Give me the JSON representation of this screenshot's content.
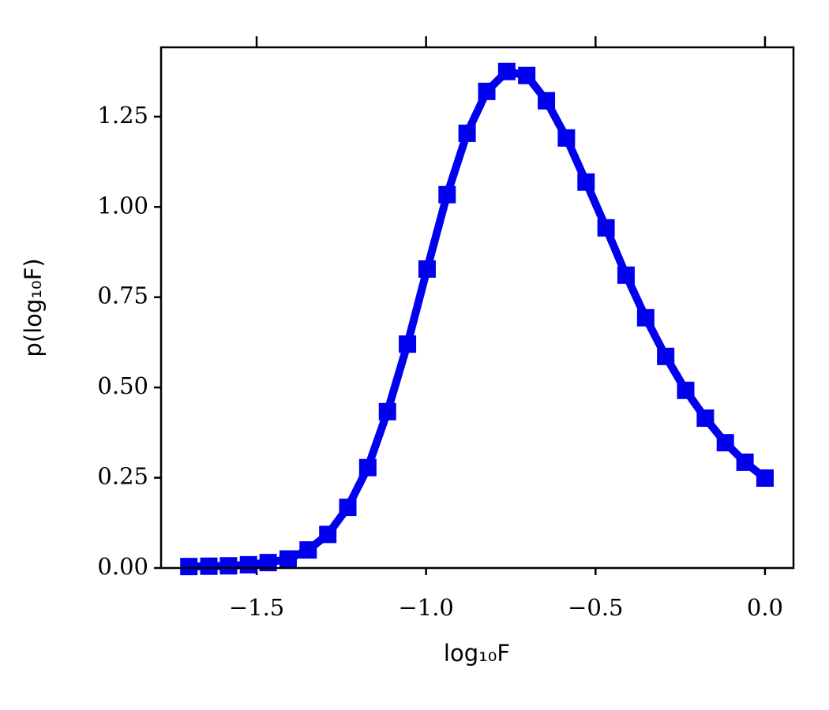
{
  "chart_data": {
    "type": "line",
    "x_label": "log₁₀F",
    "y_label": "p(log₁₀F)",
    "series": [
      {
        "color": "#0000ee",
        "marker": "square",
        "x": [
          -1.7,
          -1.641,
          -1.583,
          -1.524,
          -1.466,
          -1.407,
          -1.348,
          -1.29,
          -1.231,
          -1.172,
          -1.114,
          -1.055,
          -0.997,
          -0.938,
          -0.879,
          -0.821,
          -0.762,
          -0.703,
          -0.645,
          -0.586,
          -0.528,
          -0.469,
          -0.41,
          -0.352,
          -0.293,
          -0.234,
          -0.176,
          -0.117,
          -0.059,
          0
        ],
        "values": [
          0.004,
          0.005,
          0.006,
          0.009,
          0.015,
          0.025,
          0.05,
          0.093,
          0.168,
          0.278,
          0.433,
          0.62,
          0.828,
          1.034,
          1.204,
          1.32,
          1.375,
          1.364,
          1.294,
          1.191,
          1.069,
          0.942,
          0.811,
          0.693,
          0.586,
          0.492,
          0.415,
          0.347,
          0.293,
          0.249
        ]
      }
    ],
    "xlim": [
      -1.782,
      0.084
    ],
    "xticks": [
      {
        "value": -1.5,
        "label": "−1.5"
      },
      {
        "value": -1.0,
        "label": "−1.0"
      },
      {
        "value": -0.5,
        "label": "−0.5"
      },
      {
        "value": 0,
        "label": "0.0"
      }
    ],
    "ylim": [
      0,
      1.442
    ],
    "yticks": [
      {
        "value": 0,
        "label": "0.00"
      },
      {
        "value": 0.25,
        "label": "0.25"
      },
      {
        "value": 0.5,
        "label": "0.50"
      },
      {
        "value": 0.75,
        "label": "0.75"
      },
      {
        "value": 1.0,
        "label": "1.00"
      },
      {
        "value": 1.25,
        "label": "1.25"
      }
    ],
    "mirror_x_ticks": true,
    "grid": false
  }
}
